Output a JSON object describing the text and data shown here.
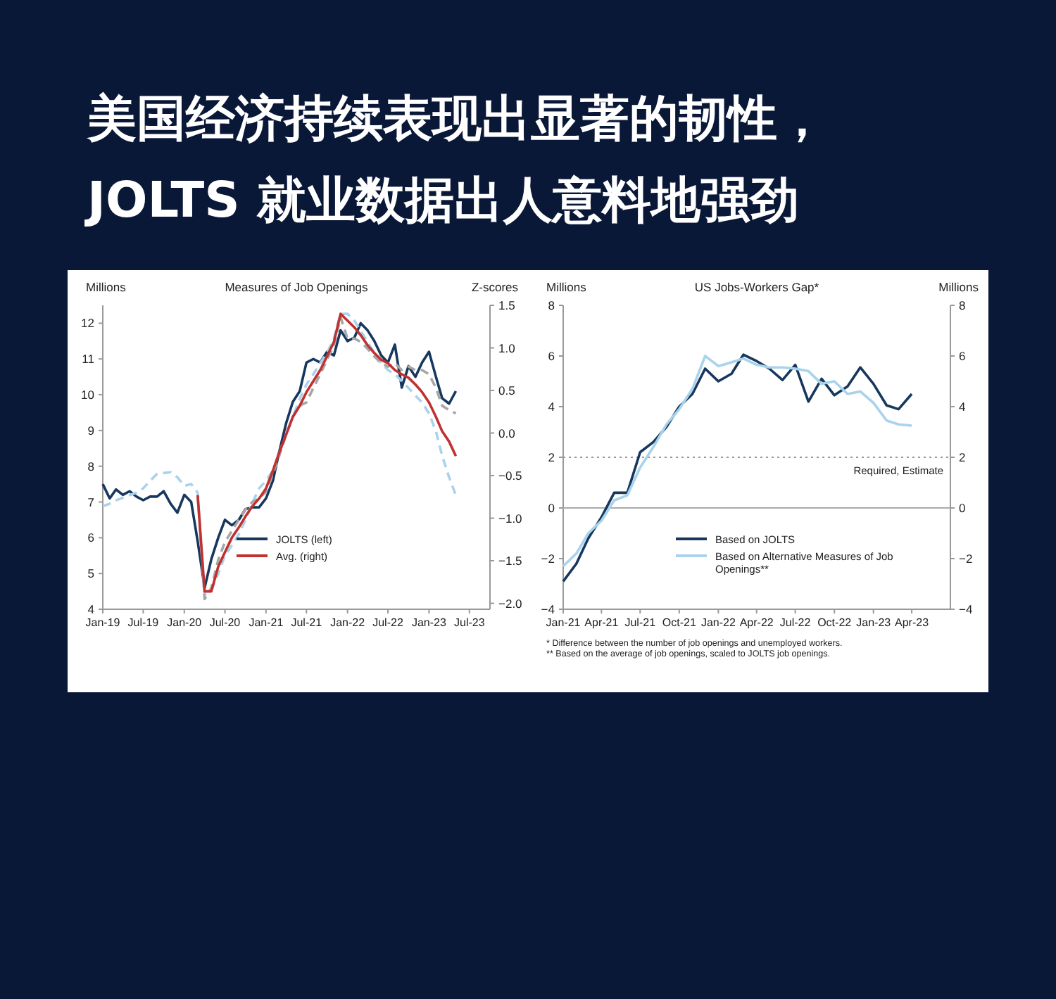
{
  "chart_data": [
    {
      "type": "line",
      "title": "美国经济持续表现出显著的韧性，JOLTS 就业数据出人意料地强劲",
      "subtitle": "Measures of Job Openings",
      "ylabel": "Millions",
      "y2label": "Z-scores",
      "x": [
        "2019-01",
        "2019-02",
        "2019-03",
        "2019-04",
        "2019-05",
        "2019-06",
        "2019-07",
        "2019-08",
        "2019-09",
        "2019-10",
        "2019-11",
        "2019-12",
        "2020-01",
        "2020-02",
        "2020-03",
        "2020-04",
        "2020-05",
        "2020-06",
        "2020-07",
        "2020-08",
        "2020-09",
        "2020-10",
        "2020-11",
        "2020-12",
        "2021-01",
        "2021-02",
        "2021-03",
        "2021-04",
        "2021-05",
        "2021-06",
        "2021-07",
        "2021-08",
        "2021-09",
        "2021-10",
        "2021-11",
        "2021-12",
        "2022-01",
        "2022-02",
        "2022-03",
        "2022-04",
        "2022-05",
        "2022-06",
        "2022-07",
        "2022-08",
        "2022-09",
        "2022-10",
        "2022-11",
        "2022-12",
        "2023-01",
        "2023-02",
        "2023-03",
        "2023-04",
        "2023-05"
      ],
      "xlim": [
        "2019-01",
        "2023-10"
      ],
      "xticks": [
        {
          "value": "2019-01",
          "label": "Jan-19"
        },
        {
          "value": "2019-07",
          "label": "Jul-19"
        },
        {
          "value": "2020-01",
          "label": "Jan-20"
        },
        {
          "value": "2020-07",
          "label": "Jul-20"
        },
        {
          "value": "2021-01",
          "label": "Jan-21"
        },
        {
          "value": "2021-07",
          "label": "Jul-21"
        },
        {
          "value": "2022-01",
          "label": "Jan-22"
        },
        {
          "value": "2022-07",
          "label": "Jul-22"
        },
        {
          "value": "2023-01",
          "label": "Jan-23"
        },
        {
          "value": "2023-07",
          "label": "Jul-23"
        }
      ],
      "ylim": [
        4,
        12.5
      ],
      "yticks": [
        4,
        5,
        6,
        7,
        8,
        9,
        10,
        11,
        12
      ],
      "y2lim": [
        -2.07,
        1.5
      ],
      "y2ticks": [
        {
          "value": -2,
          "label": "−2.0"
        },
        {
          "value": -1.5,
          "label": "−1.5"
        },
        {
          "value": -1,
          "label": "−1.0"
        },
        {
          "value": -0.5,
          "label": "−0.5"
        },
        {
          "value": 0,
          "label": "0.0"
        },
        {
          "value": 0.5,
          "label": "0.5"
        },
        {
          "value": 1,
          "label": "1.0"
        },
        {
          "value": 1.5,
          "label": "1.5"
        }
      ],
      "legend": "bottom right",
      "series": [
        {
          "name": "JOLTS (left)",
          "color": "#17375e",
          "line_style": "solid",
          "values": [
            7.5,
            7.1,
            7.35,
            7.2,
            7.3,
            7.15,
            7.05,
            7.15,
            7.15,
            7.3,
            6.95,
            6.7,
            7.2,
            7.0,
            5.9,
            4.6,
            5.4,
            6.0,
            6.5,
            6.35,
            6.5,
            6.8,
            6.85,
            6.85,
            7.1,
            7.6,
            8.4,
            9.2,
            9.8,
            10.1,
            10.9,
            11.0,
            10.9,
            11.2,
            11.1,
            11.8,
            11.5,
            11.6,
            12.0,
            11.8,
            11.5,
            11.1,
            10.9,
            11.4,
            10.2,
            10.8,
            10.5,
            10.9,
            11.2,
            10.5,
            9.9,
            9.75,
            10.1
          ]
        },
        {
          "color": "#a9d3ec",
          "axis": "y2",
          "line_style": "dashed",
          "values": [
            -0.86,
            -0.83,
            -0.79,
            -0.76,
            -0.73,
            -0.7,
            -0.65,
            -0.56,
            -0.48,
            -0.47,
            -0.46,
            -0.52,
            -0.62,
            -0.6,
            -0.7,
            -1.9,
            -1.85,
            -1.65,
            -1.44,
            -1.32,
            -1.19,
            -1.02,
            -0.82,
            -0.65,
            -0.56,
            -0.44,
            -0.23,
            -0.02,
            0.19,
            0.4,
            0.57,
            0.69,
            0.82,
            0.94,
            1.11,
            1.4,
            1.4,
            1.32,
            1.2,
            1.07,
            0.94,
            0.82,
            0.74,
            0.69,
            0.61,
            0.53,
            0.44,
            0.36,
            0.23,
            0.02,
            -0.27,
            -0.52,
            -0.73
          ]
        },
        {
          "color": "#a6a6a6",
          "axis": "y2",
          "line_style": "dashed",
          "values": [
            null,
            null,
            null,
            null,
            null,
            null,
            null,
            null,
            null,
            null,
            null,
            null,
            null,
            null,
            -0.73,
            -1.95,
            -1.82,
            -1.49,
            -1.28,
            -1.15,
            -1.02,
            -0.9,
            -0.81,
            -0.77,
            -0.69,
            -0.48,
            -0.27,
            -0.02,
            0.19,
            0.32,
            0.36,
            0.53,
            0.69,
            0.86,
            1.03,
            1.36,
            1.11,
            1.11,
            1.07,
            0.99,
            0.9,
            0.82,
            0.78,
            0.82,
            0.74,
            0.78,
            0.74,
            0.74,
            0.69,
            0.53,
            0.32,
            0.27,
            0.23
          ]
        },
        {
          "name": "Avg. (right)",
          "color": "#c0312f",
          "axis": "y2",
          "line_style": "solid",
          "values": [
            null,
            null,
            null,
            null,
            null,
            null,
            null,
            null,
            null,
            null,
            null,
            null,
            null,
            null,
            -0.73,
            -1.86,
            -1.86,
            -1.57,
            -1.4,
            -1.23,
            -1.11,
            -0.98,
            -0.86,
            -0.77,
            -0.65,
            -0.44,
            -0.23,
            -0.02,
            0.19,
            0.32,
            0.48,
            0.61,
            0.74,
            0.9,
            1.07,
            1.4,
            1.32,
            1.24,
            1.15,
            1.03,
            0.94,
            0.86,
            0.82,
            0.74,
            0.69,
            0.65,
            0.57,
            0.48,
            0.36,
            0.19,
            0.02,
            -0.1,
            -0.27
          ]
        }
      ]
    },
    {
      "type": "line",
      "title": "US Jobs-Workers Gap*",
      "ylabel": "Millions",
      "y2label": "Millions",
      "x": [
        "2021-01",
        "2021-02",
        "2021-03",
        "2021-04",
        "2021-05",
        "2021-06",
        "2021-07",
        "2021-08",
        "2021-09",
        "2021-10",
        "2021-11",
        "2021-12",
        "2022-01",
        "2022-02",
        "2022-03",
        "2022-04",
        "2022-05",
        "2022-06",
        "2022-07",
        "2022-08",
        "2022-09",
        "2022-10",
        "2022-11",
        "2022-12",
        "2023-01",
        "2023-02",
        "2023-03",
        "2023-04"
      ],
      "xlim": [
        "2021-01",
        "2023-07"
      ],
      "xticks": [
        {
          "value": "2021-01",
          "label": "Jan-21"
        },
        {
          "value": "2021-04",
          "label": "Apr-21"
        },
        {
          "value": "2021-07",
          "label": "Jul-21"
        },
        {
          "value": "2021-10",
          "label": "Oct-21"
        },
        {
          "value": "2022-01",
          "label": "Jan-22"
        },
        {
          "value": "2022-04",
          "label": "Apr-22"
        },
        {
          "value": "2022-07",
          "label": "Jul-22"
        },
        {
          "value": "2022-10",
          "label": "Oct-22"
        },
        {
          "value": "2023-01",
          "label": "Jan-23"
        },
        {
          "value": "2023-04",
          "label": "Apr-23"
        }
      ],
      "ylim": [
        -4,
        8
      ],
      "yticks": [
        {
          "value": -4,
          "label": "−4"
        },
        {
          "value": -2,
          "label": "−2"
        },
        0,
        2,
        4,
        6,
        8
      ],
      "y2lim": [
        -4,
        8
      ],
      "y2ticks": [
        {
          "value": -4,
          "label": "−4"
        },
        {
          "value": -2,
          "label": "−2"
        },
        0,
        2,
        4,
        6,
        8
      ],
      "legend": "bottom right",
      "ref_lines": [
        {
          "axis": "y",
          "value": 2,
          "label": "Required, Estimate",
          "color": "#999999",
          "line_style": "dotted"
        },
        {
          "axis": "y",
          "value": 0,
          "label": null,
          "color": "#aaaaaa",
          "line_style": "solid"
        }
      ],
      "annotations": [
        "* Difference between the number of job openings and unemployed workers.",
        "** Based on the average of job openings, scaled to JOLTS job openings."
      ],
      "series": [
        {
          "name": "Based on JOLTS",
          "color": "#17375e",
          "line_style": "solid",
          "values": [
            -2.9,
            -2.2,
            -1.2,
            -0.37,
            0.6,
            0.6,
            2.2,
            2.6,
            3.2,
            4.0,
            4.5,
            5.5,
            5.0,
            5.3,
            6.05,
            5.8,
            5.5,
            5.05,
            5.65,
            4.2,
            5.1,
            4.45,
            4.8,
            5.55,
            4.9,
            4.05,
            3.9,
            4.5
          ]
        },
        {
          "name": "Based on Alternative Measures of Job Openings**",
          "color": "#a9d3ec",
          "line_style": "solid",
          "values": [
            -2.3,
            -1.8,
            -1.0,
            -0.5,
            0.3,
            0.5,
            1.6,
            2.4,
            3.3,
            3.9,
            4.7,
            6.0,
            5.6,
            5.75,
            5.9,
            5.65,
            5.55,
            5.55,
            5.5,
            5.4,
            4.9,
            5.0,
            4.5,
            4.6,
            4.15,
            3.45,
            3.3,
            3.25
          ]
        }
      ]
    }
  ]
}
